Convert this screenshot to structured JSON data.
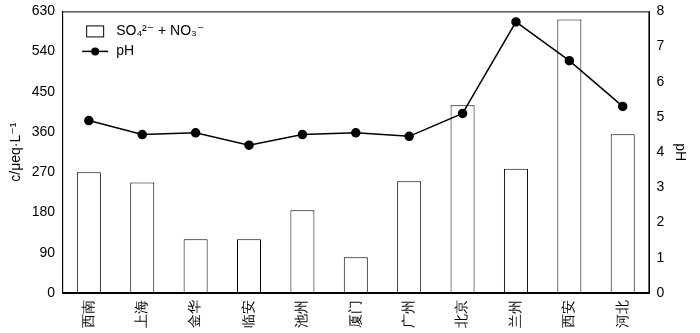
{
  "chart_data": {
    "type": "bar",
    "categories": [
      "西南",
      "上海",
      "金华",
      "临安",
      "池州",
      "厦门",
      "广州",
      "北京",
      "兰州",
      "西安",
      "河北"
    ],
    "y_label": "c/μeq·L⁻¹",
    "y2_label": "pH",
    "ylim": [
      0,
      630
    ],
    "yticks": [
      0,
      90,
      180,
      270,
      360,
      450,
      540,
      630
    ],
    "y2lim": [
      0,
      8
    ],
    "y2ticks": [
      0,
      1,
      2,
      3,
      4,
      5,
      6,
      7,
      8
    ],
    "grid": false,
    "legend": "upper left",
    "series": [
      {
        "name": "SO₄²⁻ + NO₃⁻",
        "type": "bar",
        "color": "#ffffff",
        "values": [
          270,
          247,
          120,
          120,
          185,
          80,
          250,
          420,
          278,
          612,
          355
        ]
      },
      {
        "name": "pH",
        "type": "line",
        "axis": "y2",
        "color": "#000000",
        "marker": "circle",
        "line_style": "solid",
        "values": [
          4.9,
          4.5,
          4.55,
          4.2,
          4.5,
          4.55,
          4.45,
          5.1,
          7.7,
          6.6,
          5.3
        ]
      }
    ]
  }
}
